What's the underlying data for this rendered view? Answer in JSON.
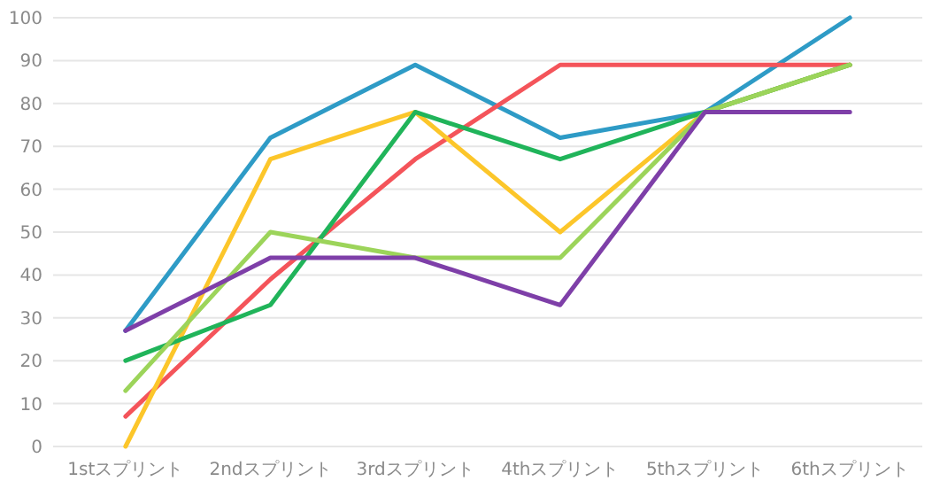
{
  "chart_data": {
    "type": "line",
    "categories": [
      "1stスプリント",
      "2ndスプリント",
      "3rdスプリント",
      "4thスプリント",
      "5thスプリント",
      "6thスプリント"
    ],
    "series": [
      {
        "color": "#2e9bc6",
        "values": [
          27,
          72,
          89,
          72,
          78,
          100
        ]
      },
      {
        "color": "#f4545a",
        "values": [
          7,
          39,
          67,
          89,
          89,
          89
        ]
      },
      {
        "color": "#fcc62a",
        "values": [
          0,
          67,
          78,
          50,
          78,
          89
        ]
      },
      {
        "color": "#20b45a",
        "values": [
          20,
          33,
          78,
          67,
          78,
          89
        ]
      },
      {
        "color": "#9cd45a",
        "values": [
          13,
          50,
          44,
          44,
          78,
          89
        ]
      },
      {
        "color": "#7e3fa8",
        "values": [
          27,
          44,
          44,
          33,
          78,
          78
        ]
      }
    ],
    "ylim": [
      0,
      100
    ],
    "yticks": [
      0,
      10,
      20,
      30,
      40,
      50,
      60,
      70,
      80,
      90,
      100
    ],
    "grid": "y",
    "marker": "none",
    "line_style": "solid"
  }
}
